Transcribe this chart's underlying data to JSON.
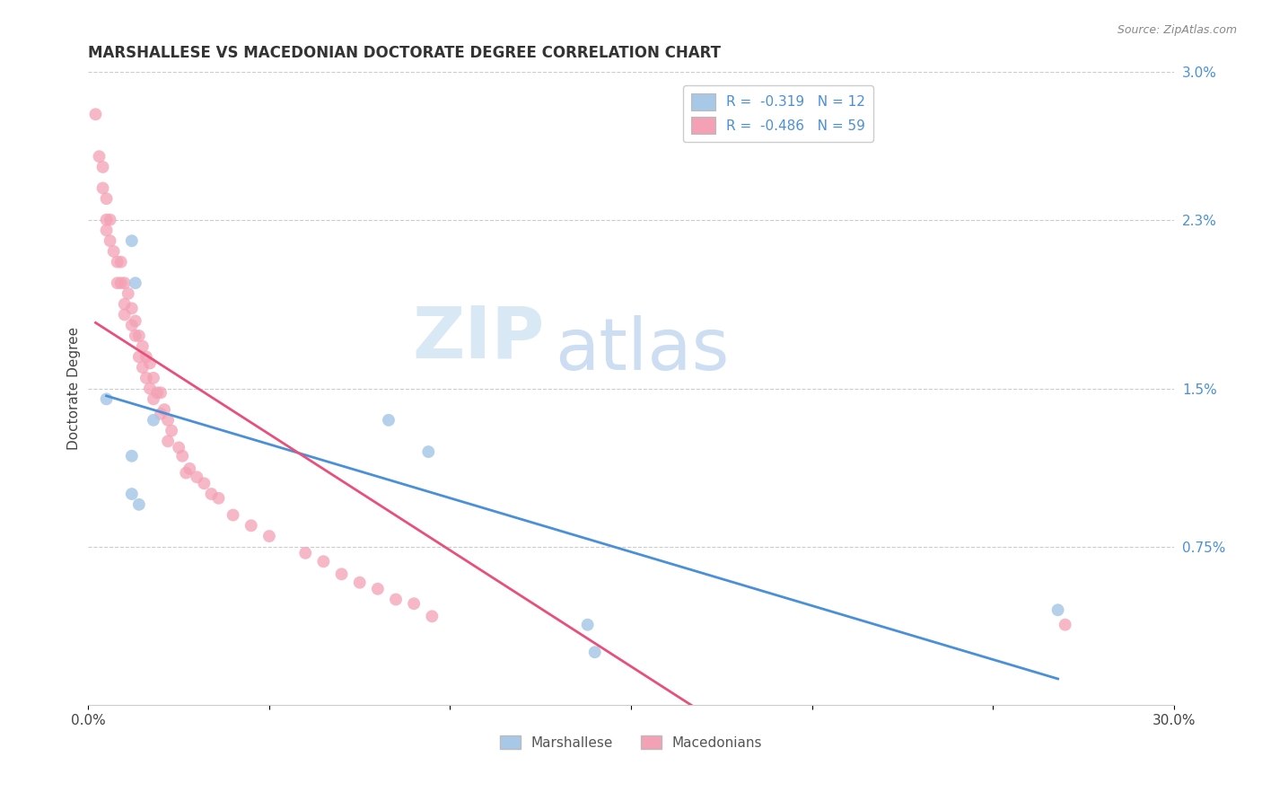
{
  "title": "MARSHALLESE VS MACEDONIAN DOCTORATE DEGREE CORRELATION CHART",
  "source": "Source: ZipAtlas.com",
  "ylabel": "Doctorate Degree",
  "xlim": [
    0.0,
    0.3
  ],
  "ylim": [
    0.0,
    0.03
  ],
  "legend_r_marshallese": "-0.319",
  "legend_n_marshallese": "12",
  "legend_r_macedonian": "-0.486",
  "legend_n_macedonian": "59",
  "color_marshallese": "#a8c8e8",
  "color_macedonian": "#f4a0b5",
  "line_color_marshallese": "#4a90d9",
  "line_color_macedonian": "#e8507a",
  "marshallese_x": [
    0.005,
    0.012,
    0.013,
    0.018,
    0.012,
    0.012,
    0.014,
    0.083,
    0.094,
    0.268,
    0.138,
    0.14
  ],
  "marshallese_y": [
    0.0145,
    0.022,
    0.02,
    0.0135,
    0.0118,
    0.01,
    0.0095,
    0.0135,
    0.012,
    0.0045,
    0.0038,
    0.0025
  ],
  "macedonian_x": [
    0.002,
    0.003,
    0.004,
    0.004,
    0.005,
    0.005,
    0.005,
    0.006,
    0.006,
    0.007,
    0.008,
    0.008,
    0.009,
    0.009,
    0.01,
    0.01,
    0.01,
    0.011,
    0.012,
    0.012,
    0.013,
    0.013,
    0.014,
    0.014,
    0.015,
    0.015,
    0.016,
    0.016,
    0.017,
    0.017,
    0.018,
    0.018,
    0.019,
    0.02,
    0.02,
    0.021,
    0.022,
    0.022,
    0.023,
    0.025,
    0.026,
    0.027,
    0.028,
    0.03,
    0.032,
    0.034,
    0.036,
    0.04,
    0.045,
    0.05,
    0.06,
    0.065,
    0.07,
    0.075,
    0.08,
    0.085,
    0.09,
    0.095,
    0.27
  ],
  "macedonian_y": [
    0.028,
    0.026,
    0.0255,
    0.0245,
    0.024,
    0.023,
    0.0225,
    0.023,
    0.022,
    0.0215,
    0.021,
    0.02,
    0.021,
    0.02,
    0.02,
    0.019,
    0.0185,
    0.0195,
    0.0188,
    0.018,
    0.0182,
    0.0175,
    0.0175,
    0.0165,
    0.017,
    0.016,
    0.0165,
    0.0155,
    0.0162,
    0.015,
    0.0155,
    0.0145,
    0.0148,
    0.0148,
    0.0138,
    0.014,
    0.0135,
    0.0125,
    0.013,
    0.0122,
    0.0118,
    0.011,
    0.0112,
    0.0108,
    0.0105,
    0.01,
    0.0098,
    0.009,
    0.0085,
    0.008,
    0.0072,
    0.0068,
    0.0062,
    0.0058,
    0.0055,
    0.005,
    0.0048,
    0.0042,
    0.0038
  ]
}
